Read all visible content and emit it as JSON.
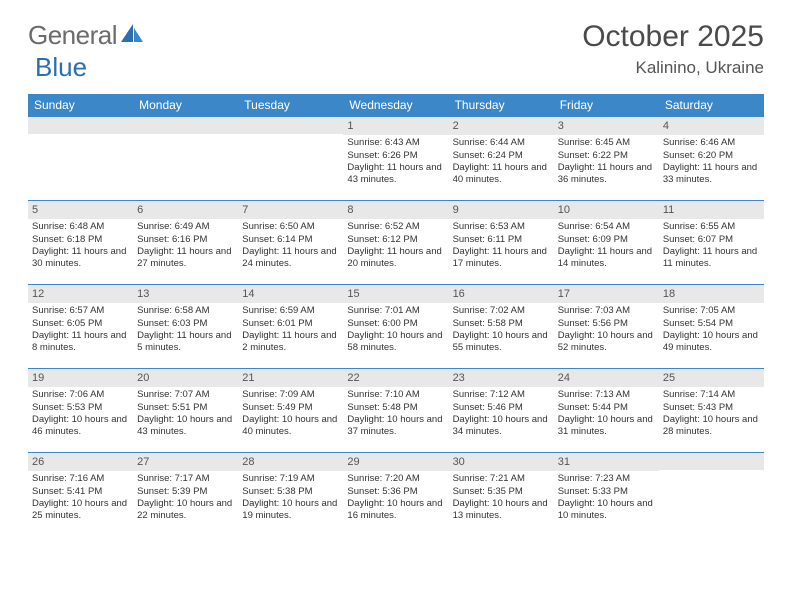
{
  "logo": {
    "text1": "General",
    "text2": "Blue"
  },
  "header": {
    "title": "October 2025",
    "location": "Kalinino, Ukraine"
  },
  "colors": {
    "header_bar": "#3b87c8",
    "day_num_bg": "#e8e8e8",
    "logo_gray": "#6b6b6b",
    "logo_blue": "#2b6fb0",
    "text": "#333333"
  },
  "weekdays": [
    "Sunday",
    "Monday",
    "Tuesday",
    "Wednesday",
    "Thursday",
    "Friday",
    "Saturday"
  ],
  "layout": {
    "cols": 7,
    "rows": 5,
    "leading_blanks": 3,
    "trailing_blanks": 1
  },
  "days": [
    {
      "n": "1",
      "sr": "6:43 AM",
      "ss": "6:26 PM",
      "dl": "11 hours and 43 minutes."
    },
    {
      "n": "2",
      "sr": "6:44 AM",
      "ss": "6:24 PM",
      "dl": "11 hours and 40 minutes."
    },
    {
      "n": "3",
      "sr": "6:45 AM",
      "ss": "6:22 PM",
      "dl": "11 hours and 36 minutes."
    },
    {
      "n": "4",
      "sr": "6:46 AM",
      "ss": "6:20 PM",
      "dl": "11 hours and 33 minutes."
    },
    {
      "n": "5",
      "sr": "6:48 AM",
      "ss": "6:18 PM",
      "dl": "11 hours and 30 minutes."
    },
    {
      "n": "6",
      "sr": "6:49 AM",
      "ss": "6:16 PM",
      "dl": "11 hours and 27 minutes."
    },
    {
      "n": "7",
      "sr": "6:50 AM",
      "ss": "6:14 PM",
      "dl": "11 hours and 24 minutes."
    },
    {
      "n": "8",
      "sr": "6:52 AM",
      "ss": "6:12 PM",
      "dl": "11 hours and 20 minutes."
    },
    {
      "n": "9",
      "sr": "6:53 AM",
      "ss": "6:11 PM",
      "dl": "11 hours and 17 minutes."
    },
    {
      "n": "10",
      "sr": "6:54 AM",
      "ss": "6:09 PM",
      "dl": "11 hours and 14 minutes."
    },
    {
      "n": "11",
      "sr": "6:55 AM",
      "ss": "6:07 PM",
      "dl": "11 hours and 11 minutes."
    },
    {
      "n": "12",
      "sr": "6:57 AM",
      "ss": "6:05 PM",
      "dl": "11 hours and 8 minutes."
    },
    {
      "n": "13",
      "sr": "6:58 AM",
      "ss": "6:03 PM",
      "dl": "11 hours and 5 minutes."
    },
    {
      "n": "14",
      "sr": "6:59 AM",
      "ss": "6:01 PM",
      "dl": "11 hours and 2 minutes."
    },
    {
      "n": "15",
      "sr": "7:01 AM",
      "ss": "6:00 PM",
      "dl": "10 hours and 58 minutes."
    },
    {
      "n": "16",
      "sr": "7:02 AM",
      "ss": "5:58 PM",
      "dl": "10 hours and 55 minutes."
    },
    {
      "n": "17",
      "sr": "7:03 AM",
      "ss": "5:56 PM",
      "dl": "10 hours and 52 minutes."
    },
    {
      "n": "18",
      "sr": "7:05 AM",
      "ss": "5:54 PM",
      "dl": "10 hours and 49 minutes."
    },
    {
      "n": "19",
      "sr": "7:06 AM",
      "ss": "5:53 PM",
      "dl": "10 hours and 46 minutes."
    },
    {
      "n": "20",
      "sr": "7:07 AM",
      "ss": "5:51 PM",
      "dl": "10 hours and 43 minutes."
    },
    {
      "n": "21",
      "sr": "7:09 AM",
      "ss": "5:49 PM",
      "dl": "10 hours and 40 minutes."
    },
    {
      "n": "22",
      "sr": "7:10 AM",
      "ss": "5:48 PM",
      "dl": "10 hours and 37 minutes."
    },
    {
      "n": "23",
      "sr": "7:12 AM",
      "ss": "5:46 PM",
      "dl": "10 hours and 34 minutes."
    },
    {
      "n": "24",
      "sr": "7:13 AM",
      "ss": "5:44 PM",
      "dl": "10 hours and 31 minutes."
    },
    {
      "n": "25",
      "sr": "7:14 AM",
      "ss": "5:43 PM",
      "dl": "10 hours and 28 minutes."
    },
    {
      "n": "26",
      "sr": "7:16 AM",
      "ss": "5:41 PM",
      "dl": "10 hours and 25 minutes."
    },
    {
      "n": "27",
      "sr": "7:17 AM",
      "ss": "5:39 PM",
      "dl": "10 hours and 22 minutes."
    },
    {
      "n": "28",
      "sr": "7:19 AM",
      "ss": "5:38 PM",
      "dl": "10 hours and 19 minutes."
    },
    {
      "n": "29",
      "sr": "7:20 AM",
      "ss": "5:36 PM",
      "dl": "10 hours and 16 minutes."
    },
    {
      "n": "30",
      "sr": "7:21 AM",
      "ss": "5:35 PM",
      "dl": "10 hours and 13 minutes."
    },
    {
      "n": "31",
      "sr": "7:23 AM",
      "ss": "5:33 PM",
      "dl": "10 hours and 10 minutes."
    }
  ],
  "labels": {
    "sunrise": "Sunrise:",
    "sunset": "Sunset:",
    "daylight": "Daylight:"
  }
}
